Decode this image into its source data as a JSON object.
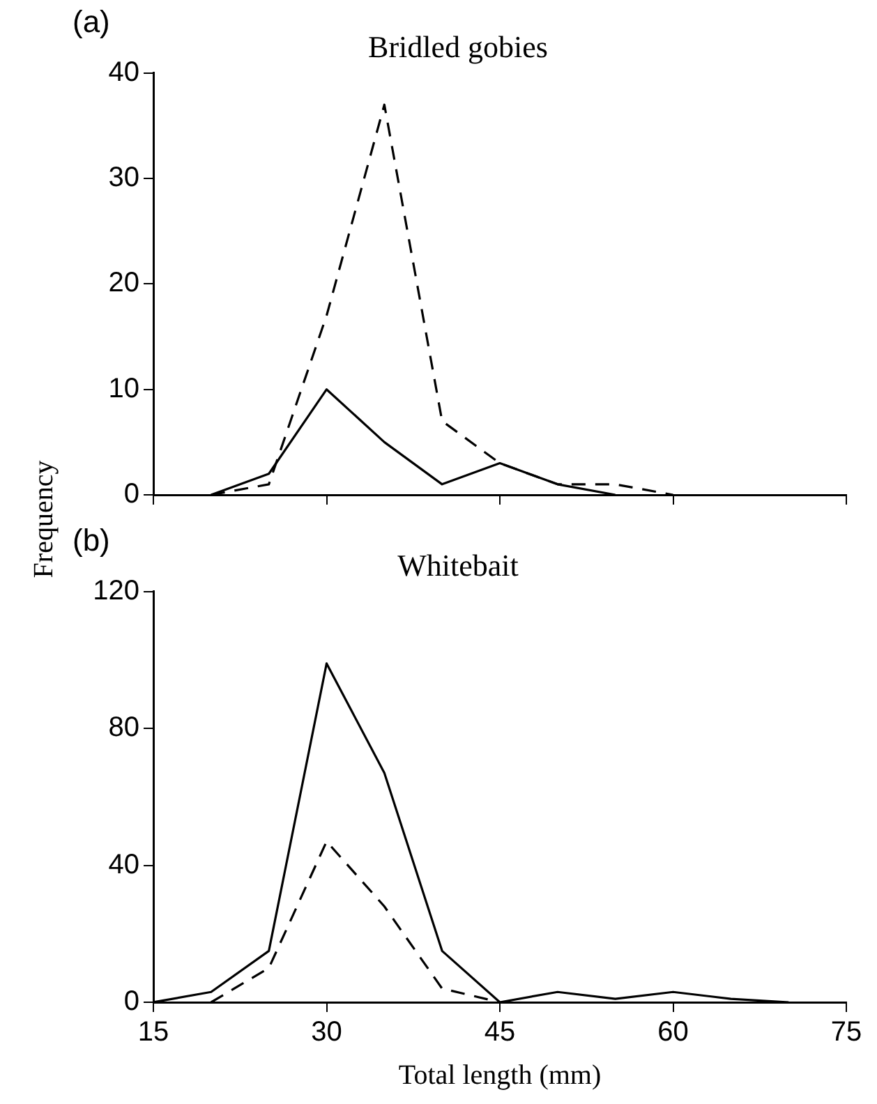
{
  "chart_data": [
    {
      "type": "line",
      "title": "Bridled gobies",
      "ylabel": "Frequency",
      "annotations": [
        "(a)"
      ],
      "x": [
        20,
        25,
        30,
        35,
        40,
        45,
        50,
        55,
        60
      ],
      "xlim": [
        15,
        75
      ],
      "xticks": [
        {
          "value": 15,
          "label": null
        },
        {
          "value": 30,
          "label": null
        },
        {
          "value": 45,
          "label": null
        },
        {
          "value": 60,
          "label": null
        },
        {
          "value": 75,
          "label": null
        }
      ],
      "ylim": [
        0,
        40
      ],
      "yticks": [
        0,
        10,
        20,
        30,
        40
      ],
      "tick_labels": "y",
      "grid": false,
      "legend": false,
      "marker": "none",
      "series": [
        {
          "color": "#000000",
          "line_style": "solid",
          "values": [
            0,
            2,
            10,
            5,
            1,
            3,
            1,
            0,
            null
          ]
        },
        {
          "color": "#000000",
          "line_style": "dashed",
          "values": [
            0,
            1,
            17,
            37,
            7,
            3,
            1,
            1,
            0
          ]
        }
      ]
    },
    {
      "type": "line",
      "title": "Whitebait",
      "xlabel": "Total length (mm)",
      "annotations": [
        "(b)"
      ],
      "x": [
        15,
        20,
        25,
        30,
        35,
        40,
        45,
        50,
        55,
        60,
        65,
        70
      ],
      "xlim": [
        15,
        75
      ],
      "xticks": [
        15,
        30,
        45,
        60,
        75
      ],
      "ylim": [
        0,
        120
      ],
      "yticks": [
        0,
        40,
        80,
        120
      ],
      "grid": false,
      "legend": false,
      "marker": "none",
      "series": [
        {
          "color": "#000000",
          "line_style": "solid",
          "values": [
            0,
            3,
            15,
            99,
            67,
            15,
            0,
            3,
            1,
            3,
            1,
            0
          ]
        },
        {
          "color": "#000000",
          "line_style": "dashed",
          "values": [
            null,
            0,
            10,
            47,
            28,
            4,
            0,
            null,
            null,
            null,
            null,
            null
          ]
        }
      ]
    }
  ]
}
